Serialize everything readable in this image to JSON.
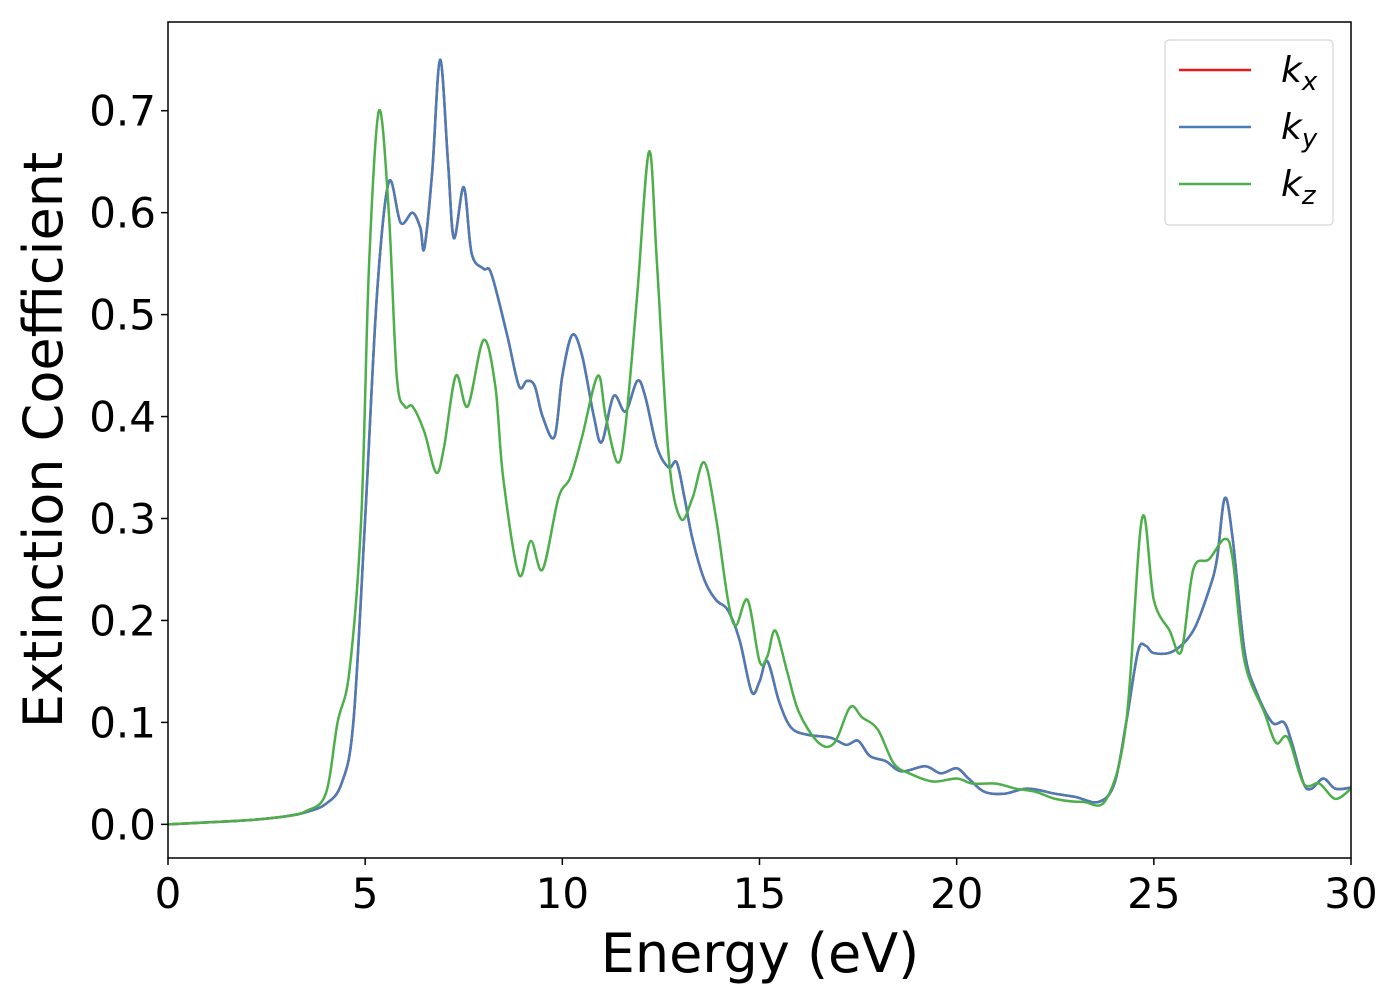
{
  "chart_data": {
    "type": "line",
    "xlabel": "Energy (eV)",
    "ylabel": "Extinction Coefficient",
    "xlim": [
      0,
      30
    ],
    "xticks": [
      0,
      5,
      10,
      15,
      20,
      25,
      30
    ],
    "ylim": [
      -0.033,
      0.787
    ],
    "yticks": [
      0.0,
      0.1,
      0.2,
      0.3,
      0.4,
      0.5,
      0.6,
      0.7
    ],
    "legend": "upper right",
    "series": [
      {
        "name": "kx",
        "color": "#e41a1c",
        "x": [
          0,
          1,
          2,
          3,
          3.5,
          4,
          4.4,
          4.7,
          5.0,
          5.3,
          5.6,
          5.9,
          6.2,
          6.4,
          6.5,
          6.7,
          6.9,
          7.1,
          7.25,
          7.5,
          7.7,
          8.0,
          8.2,
          8.6,
          8.9,
          9.1,
          9.3,
          9.5,
          9.8,
          10.0,
          10.25,
          10.5,
          10.8,
          11.0,
          11.3,
          11.6,
          11.9,
          12.1,
          12.4,
          12.7,
          12.9,
          13.1,
          13.3,
          13.6,
          13.9,
          14.2,
          14.5,
          14.8,
          15.0,
          15.2,
          15.5,
          15.8,
          16.2,
          16.8,
          17.2,
          17.5,
          17.8,
          18.2,
          18.6,
          19.2,
          19.6,
          20.0,
          20.3,
          20.7,
          21.2,
          21.8,
          22.5,
          23.0,
          23.6,
          24.0,
          24.3,
          24.6,
          24.8,
          25.0,
          25.5,
          26.0,
          26.4,
          26.6,
          26.8,
          27.0,
          27.3,
          27.6,
          28.0,
          28.3,
          28.5,
          28.8,
          29.0,
          29.3,
          29.6,
          30
        ],
        "values": [
          0,
          0.002,
          0.004,
          0.008,
          0.012,
          0.02,
          0.04,
          0.1,
          0.3,
          0.52,
          0.63,
          0.59,
          0.6,
          0.585,
          0.565,
          0.64,
          0.75,
          0.65,
          0.575,
          0.625,
          0.56,
          0.545,
          0.54,
          0.48,
          0.43,
          0.435,
          0.43,
          0.4,
          0.38,
          0.44,
          0.48,
          0.46,
          0.4,
          0.375,
          0.42,
          0.405,
          0.435,
          0.42,
          0.37,
          0.35,
          0.355,
          0.32,
          0.28,
          0.24,
          0.22,
          0.21,
          0.18,
          0.13,
          0.14,
          0.16,
          0.12,
          0.095,
          0.088,
          0.085,
          0.078,
          0.082,
          0.067,
          0.062,
          0.052,
          0.057,
          0.05,
          0.055,
          0.045,
          0.032,
          0.03,
          0.035,
          0.03,
          0.027,
          0.022,
          0.04,
          0.1,
          0.17,
          0.175,
          0.168,
          0.17,
          0.19,
          0.23,
          0.26,
          0.32,
          0.28,
          0.17,
          0.13,
          0.1,
          0.1,
          0.08,
          0.04,
          0.035,
          0.045,
          0.035,
          0.036
        ]
      },
      {
        "name": "ky",
        "color": "#4a7db8",
        "x": [
          0,
          1,
          2,
          3,
          3.5,
          4,
          4.4,
          4.7,
          5.0,
          5.3,
          5.6,
          5.9,
          6.2,
          6.4,
          6.5,
          6.7,
          6.9,
          7.1,
          7.25,
          7.5,
          7.7,
          8.0,
          8.2,
          8.6,
          8.9,
          9.1,
          9.3,
          9.5,
          9.8,
          10.0,
          10.25,
          10.5,
          10.8,
          11.0,
          11.3,
          11.6,
          11.9,
          12.1,
          12.4,
          12.7,
          12.9,
          13.1,
          13.3,
          13.6,
          13.9,
          14.2,
          14.5,
          14.8,
          15.0,
          15.2,
          15.5,
          15.8,
          16.2,
          16.8,
          17.2,
          17.5,
          17.8,
          18.2,
          18.6,
          19.2,
          19.6,
          20.0,
          20.3,
          20.7,
          21.2,
          21.8,
          22.5,
          23.0,
          23.6,
          24.0,
          24.3,
          24.6,
          24.8,
          25.0,
          25.5,
          26.0,
          26.4,
          26.6,
          26.8,
          27.0,
          27.3,
          27.6,
          28.0,
          28.3,
          28.5,
          28.8,
          29.0,
          29.3,
          29.6,
          30
        ],
        "values": [
          0,
          0.002,
          0.004,
          0.008,
          0.012,
          0.02,
          0.04,
          0.1,
          0.3,
          0.52,
          0.63,
          0.59,
          0.6,
          0.585,
          0.565,
          0.64,
          0.75,
          0.65,
          0.575,
          0.625,
          0.56,
          0.545,
          0.54,
          0.48,
          0.43,
          0.435,
          0.43,
          0.4,
          0.38,
          0.44,
          0.48,
          0.46,
          0.4,
          0.375,
          0.42,
          0.405,
          0.435,
          0.42,
          0.37,
          0.35,
          0.355,
          0.32,
          0.28,
          0.24,
          0.22,
          0.21,
          0.18,
          0.13,
          0.14,
          0.16,
          0.12,
          0.095,
          0.088,
          0.085,
          0.078,
          0.082,
          0.067,
          0.062,
          0.052,
          0.057,
          0.05,
          0.055,
          0.045,
          0.032,
          0.03,
          0.035,
          0.03,
          0.027,
          0.022,
          0.04,
          0.1,
          0.17,
          0.175,
          0.168,
          0.17,
          0.19,
          0.23,
          0.26,
          0.32,
          0.28,
          0.17,
          0.13,
          0.1,
          0.1,
          0.08,
          0.04,
          0.035,
          0.045,
          0.035,
          0.036
        ]
      },
      {
        "name": "kz",
        "color": "#4daf4a",
        "x": [
          0,
          1,
          2,
          3,
          3.5,
          4,
          4.3,
          4.6,
          4.9,
          5.1,
          5.35,
          5.6,
          5.8,
          6.0,
          6.2,
          6.5,
          6.8,
          7.0,
          7.3,
          7.6,
          8.0,
          8.3,
          8.5,
          8.9,
          9.2,
          9.5,
          9.9,
          10.2,
          10.5,
          10.9,
          11.1,
          11.4,
          11.6,
          11.9,
          12.2,
          12.4,
          12.7,
          13.0,
          13.3,
          13.6,
          13.9,
          14.2,
          14.4,
          14.7,
          15.0,
          15.2,
          15.4,
          15.7,
          16.0,
          16.5,
          16.9,
          17.3,
          17.6,
          18.0,
          18.4,
          18.8,
          19.4,
          20.0,
          20.4,
          21.0,
          21.5,
          22.0,
          22.5,
          23.2,
          23.8,
          24.3,
          24.7,
          25.0,
          25.4,
          25.7,
          26.0,
          26.4,
          26.8,
          27.0,
          27.3,
          27.8,
          28.1,
          28.4,
          28.8,
          29.2,
          29.6,
          30
        ],
        "values": [
          0,
          0.002,
          0.004,
          0.008,
          0.013,
          0.03,
          0.1,
          0.15,
          0.3,
          0.55,
          0.7,
          0.6,
          0.44,
          0.41,
          0.41,
          0.385,
          0.345,
          0.37,
          0.44,
          0.41,
          0.475,
          0.43,
          0.34,
          0.245,
          0.278,
          0.25,
          0.32,
          0.34,
          0.38,
          0.44,
          0.4,
          0.355,
          0.39,
          0.52,
          0.66,
          0.55,
          0.36,
          0.3,
          0.32,
          0.355,
          0.3,
          0.22,
          0.195,
          0.22,
          0.16,
          0.165,
          0.19,
          0.15,
          0.11,
          0.08,
          0.08,
          0.115,
          0.105,
          0.093,
          0.06,
          0.05,
          0.042,
          0.045,
          0.04,
          0.04,
          0.035,
          0.032,
          0.025,
          0.022,
          0.025,
          0.1,
          0.3,
          0.22,
          0.19,
          0.17,
          0.25,
          0.26,
          0.28,
          0.26,
          0.16,
          0.11,
          0.08,
          0.085,
          0.04,
          0.04,
          0.025,
          0.035
        ]
      }
    ]
  }
}
